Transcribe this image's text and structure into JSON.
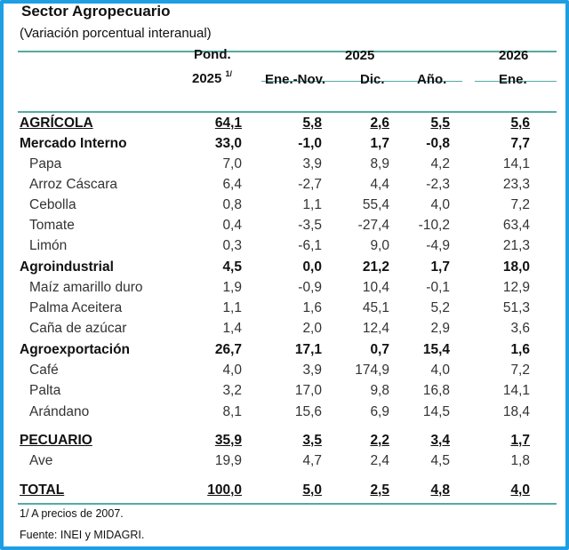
{
  "title": "Sector Agropecuario",
  "subtitle": "(Variación porcentual interanual)",
  "header": {
    "pond": "Pond.",
    "pond_year": "2025",
    "pond_note": "1/",
    "year1": "2025",
    "year2": "2026",
    "cols": [
      "Ene.-Nov.",
      "Dic.",
      "Año.",
      "Ene."
    ]
  },
  "rows": [
    {
      "label": "AGRÍCOLA",
      "values": [
        "64,1",
        "5,8",
        "2,6",
        "5,5",
        "5,6"
      ],
      "style": "section"
    },
    {
      "label": "Mercado Interno",
      "values": [
        "33,0",
        "-1,0",
        "1,7",
        "-0,8",
        "7,7"
      ],
      "style": "group"
    },
    {
      "label": "Papa",
      "values": [
        "7,0",
        "3,9",
        "8,9",
        "4,2",
        "14,1"
      ],
      "style": "item"
    },
    {
      "label": "Arroz Cáscara",
      "values": [
        "6,4",
        "-2,7",
        "4,4",
        "-2,3",
        "23,3"
      ],
      "style": "item"
    },
    {
      "label": "Cebolla",
      "values": [
        "0,8",
        "1,1",
        "55,4",
        "4,0",
        "7,2"
      ],
      "style": "item"
    },
    {
      "label": "Tomate",
      "values": [
        "0,4",
        "-3,5",
        "-27,4",
        "-10,2",
        "63,4"
      ],
      "style": "item"
    },
    {
      "label": "Limón",
      "values": [
        "0,3",
        "-6,1",
        "9,0",
        "-4,9",
        "21,3"
      ],
      "style": "item"
    },
    {
      "label": "Agroindustrial",
      "values": [
        "4,5",
        "0,0",
        "21,2",
        "1,7",
        "18,0"
      ],
      "style": "group"
    },
    {
      "label": "Maíz amarillo duro",
      "values": [
        "1,9",
        "-0,9",
        "10,4",
        "-0,1",
        "12,9"
      ],
      "style": "item"
    },
    {
      "label": "Palma Aceitera",
      "values": [
        "1,1",
        "1,6",
        "45,1",
        "5,2",
        "51,3"
      ],
      "style": "item"
    },
    {
      "label": "Caña de azúcar",
      "values": [
        "1,4",
        "2,0",
        "12,4",
        "2,9",
        "3,6"
      ],
      "style": "item"
    },
    {
      "label": "Agroexportación",
      "values": [
        "26,7",
        "17,1",
        "0,7",
        "15,4",
        "1,6"
      ],
      "style": "group"
    },
    {
      "label": "Café",
      "values": [
        "4,0",
        "3,9",
        "174,9",
        "4,0",
        "7,2"
      ],
      "style": "item"
    },
    {
      "label": "Palta",
      "values": [
        "3,2",
        "17,0",
        "9,8",
        "16,8",
        "14,1"
      ],
      "style": "item"
    },
    {
      "label": "Arándano",
      "values": [
        "8,1",
        "15,6",
        "6,9",
        "14,5",
        "18,4"
      ],
      "style": "item"
    },
    {
      "label": "PECUARIO",
      "values": [
        "35,9",
        "3,5",
        "2,2",
        "3,4",
        "1,7"
      ],
      "style": "section"
    },
    {
      "label": "Ave",
      "values": [
        "19,9",
        "4,7",
        "2,4",
        "4,5",
        "1,8"
      ],
      "style": "item"
    },
    {
      "label": "TOTAL",
      "values": [
        "100,0",
        "5,0",
        "2,5",
        "4,8",
        "4,0"
      ],
      "style": "section"
    }
  ],
  "footnotes": [
    "1/ A precios de 2007.",
    "Fuente: INEI y MIDAGRI."
  ],
  "colors": {
    "frame": "#1e9fe3",
    "rule": "#55aaa3"
  }
}
